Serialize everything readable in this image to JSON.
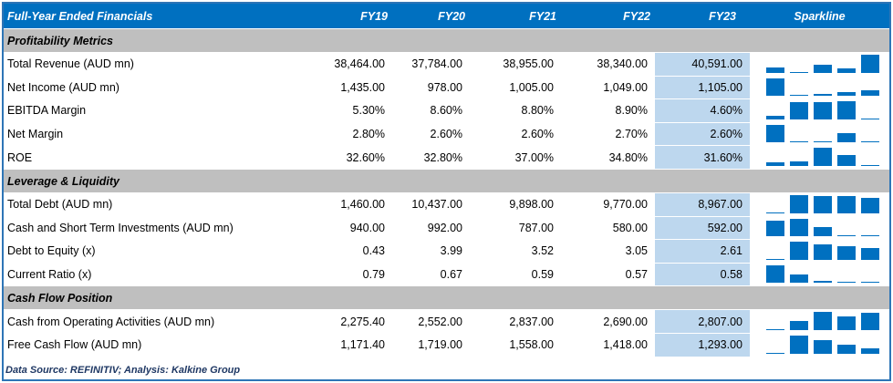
{
  "header": {
    "title": "Full-Year Ended Financials",
    "columns": [
      "FY19",
      "FY20",
      "FY21",
      "FY22",
      "FY23"
    ],
    "sparkline": "Sparkline"
  },
  "sections": [
    {
      "title": "Profitability Metrics",
      "rows": [
        {
          "label": "Total Revenue (AUD mn)",
          "values": [
            38464,
            37784,
            38955,
            38340,
            40591
          ],
          "value_labels": [
            "38,464.00",
            "37,784.00",
            "38,955.00",
            "38,340.00",
            "40,591.00"
          ]
        },
        {
          "label": "Net Income (AUD mn)",
          "values": [
            1435,
            978,
            1005,
            1049,
            1105
          ],
          "value_labels": [
            "1,435.00",
            "978.00",
            "1,005.00",
            "1,049.00",
            "1,105.00"
          ]
        },
        {
          "label": "EBITDA Margin",
          "values": [
            5.3,
            8.6,
            8.8,
            8.9,
            4.6
          ],
          "value_labels": [
            "5.30%",
            "8.60%",
            "8.80%",
            "8.90%",
            "4.60%"
          ]
        },
        {
          "label": "Net Margin",
          "values": [
            2.8,
            2.6,
            2.6,
            2.7,
            2.6
          ],
          "value_labels": [
            "2.80%",
            "2.60%",
            "2.60%",
            "2.70%",
            "2.60%"
          ]
        },
        {
          "label": "ROE",
          "values": [
            32.6,
            32.8,
            37,
            34.8,
            31.6
          ],
          "value_labels": [
            "32.60%",
            "32.80%",
            "37.00%",
            "34.80%",
            "31.60%"
          ]
        }
      ]
    },
    {
      "title": "Leverage & Liquidity",
      "rows": [
        {
          "label": "Total Debt (AUD mn)",
          "values": [
            1460,
            10437,
            9898,
            9770,
            8967
          ],
          "value_labels": [
            "1,460.00",
            "10,437.00",
            "9,898.00",
            "9,770.00",
            "8,967.00"
          ]
        },
        {
          "label": "Cash and Short Term Investments (AUD mn)",
          "values": [
            940,
            992,
            787,
            580,
            592
          ],
          "value_labels": [
            "940.00",
            "992.00",
            "787.00",
            "580.00",
            "592.00"
          ]
        },
        {
          "label": "Debt to Equity (x)",
          "values": [
            0.43,
            3.99,
            3.52,
            3.05,
            2.61
          ],
          "value_labels": [
            "0.43",
            "3.99",
            "3.52",
            "3.05",
            "2.61"
          ]
        },
        {
          "label": "Current Ratio (x)",
          "values": [
            0.79,
            0.67,
            0.59,
            0.57,
            0.58
          ],
          "value_labels": [
            "0.79",
            "0.67",
            "0.59",
            "0.57",
            "0.58"
          ]
        }
      ]
    },
    {
      "title": "Cash Flow Position",
      "rows": [
        {
          "label": "Cash from Operating Activities (AUD mn)",
          "values": [
            2275.4,
            2552,
            2837,
            2690,
            2807
          ],
          "value_labels": [
            "2,275.40",
            "2,552.00",
            "2,837.00",
            "2,690.00",
            "2,807.00"
          ]
        },
        {
          "label": "Free Cash Flow (AUD mn)",
          "values": [
            1171.4,
            1719,
            1558,
            1418,
            1293
          ],
          "value_labels": [
            "1,171.40",
            "1,719.00",
            "1,558.00",
            "1,418.00",
            "1,293.00"
          ]
        }
      ]
    }
  ],
  "footer": "Data Source: REFINITIV; Analysis: Kalkine Group"
}
